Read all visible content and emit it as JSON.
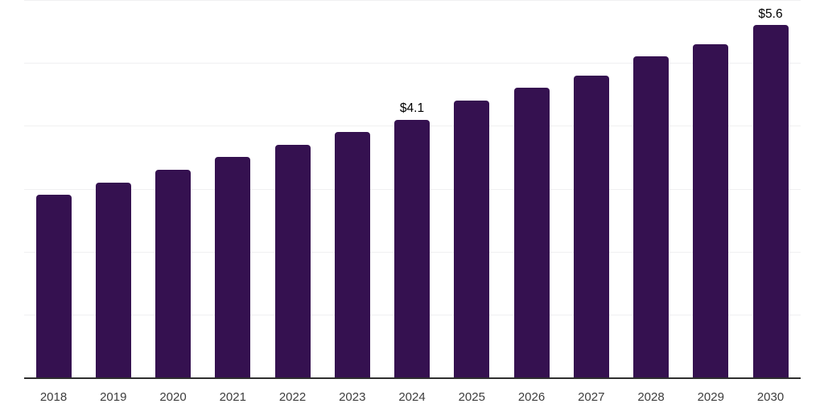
{
  "chart_data": {
    "type": "bar",
    "title": "",
    "xlabel": "",
    "ylabel": "",
    "categories": [
      "2018",
      "2019",
      "2020",
      "2021",
      "2022",
      "2023",
      "2024",
      "2025",
      "2026",
      "2027",
      "2028",
      "2029",
      "2030"
    ],
    "values": [
      2.9,
      3.1,
      3.3,
      3.5,
      3.7,
      3.9,
      4.1,
      4.4,
      4.6,
      4.8,
      5.1,
      5.3,
      5.6
    ],
    "bar_labels": [
      "",
      "",
      "",
      "",
      "",
      "",
      "$4.1",
      "",
      "",
      "",
      "",
      "",
      "$5.6"
    ],
    "ylim": [
      0,
      6
    ],
    "gridline_values": [
      1,
      2,
      3,
      4,
      5,
      6
    ],
    "grid": "horizontal",
    "y_tick_labels_visible": false,
    "legend": "none",
    "colors": {
      "bar": "#351150",
      "gridline": "#f0f0f1",
      "axis": "#2f2f2f",
      "tick_label": "#3d3d3d",
      "data_label": "#000000",
      "background": "#ffffff"
    }
  }
}
